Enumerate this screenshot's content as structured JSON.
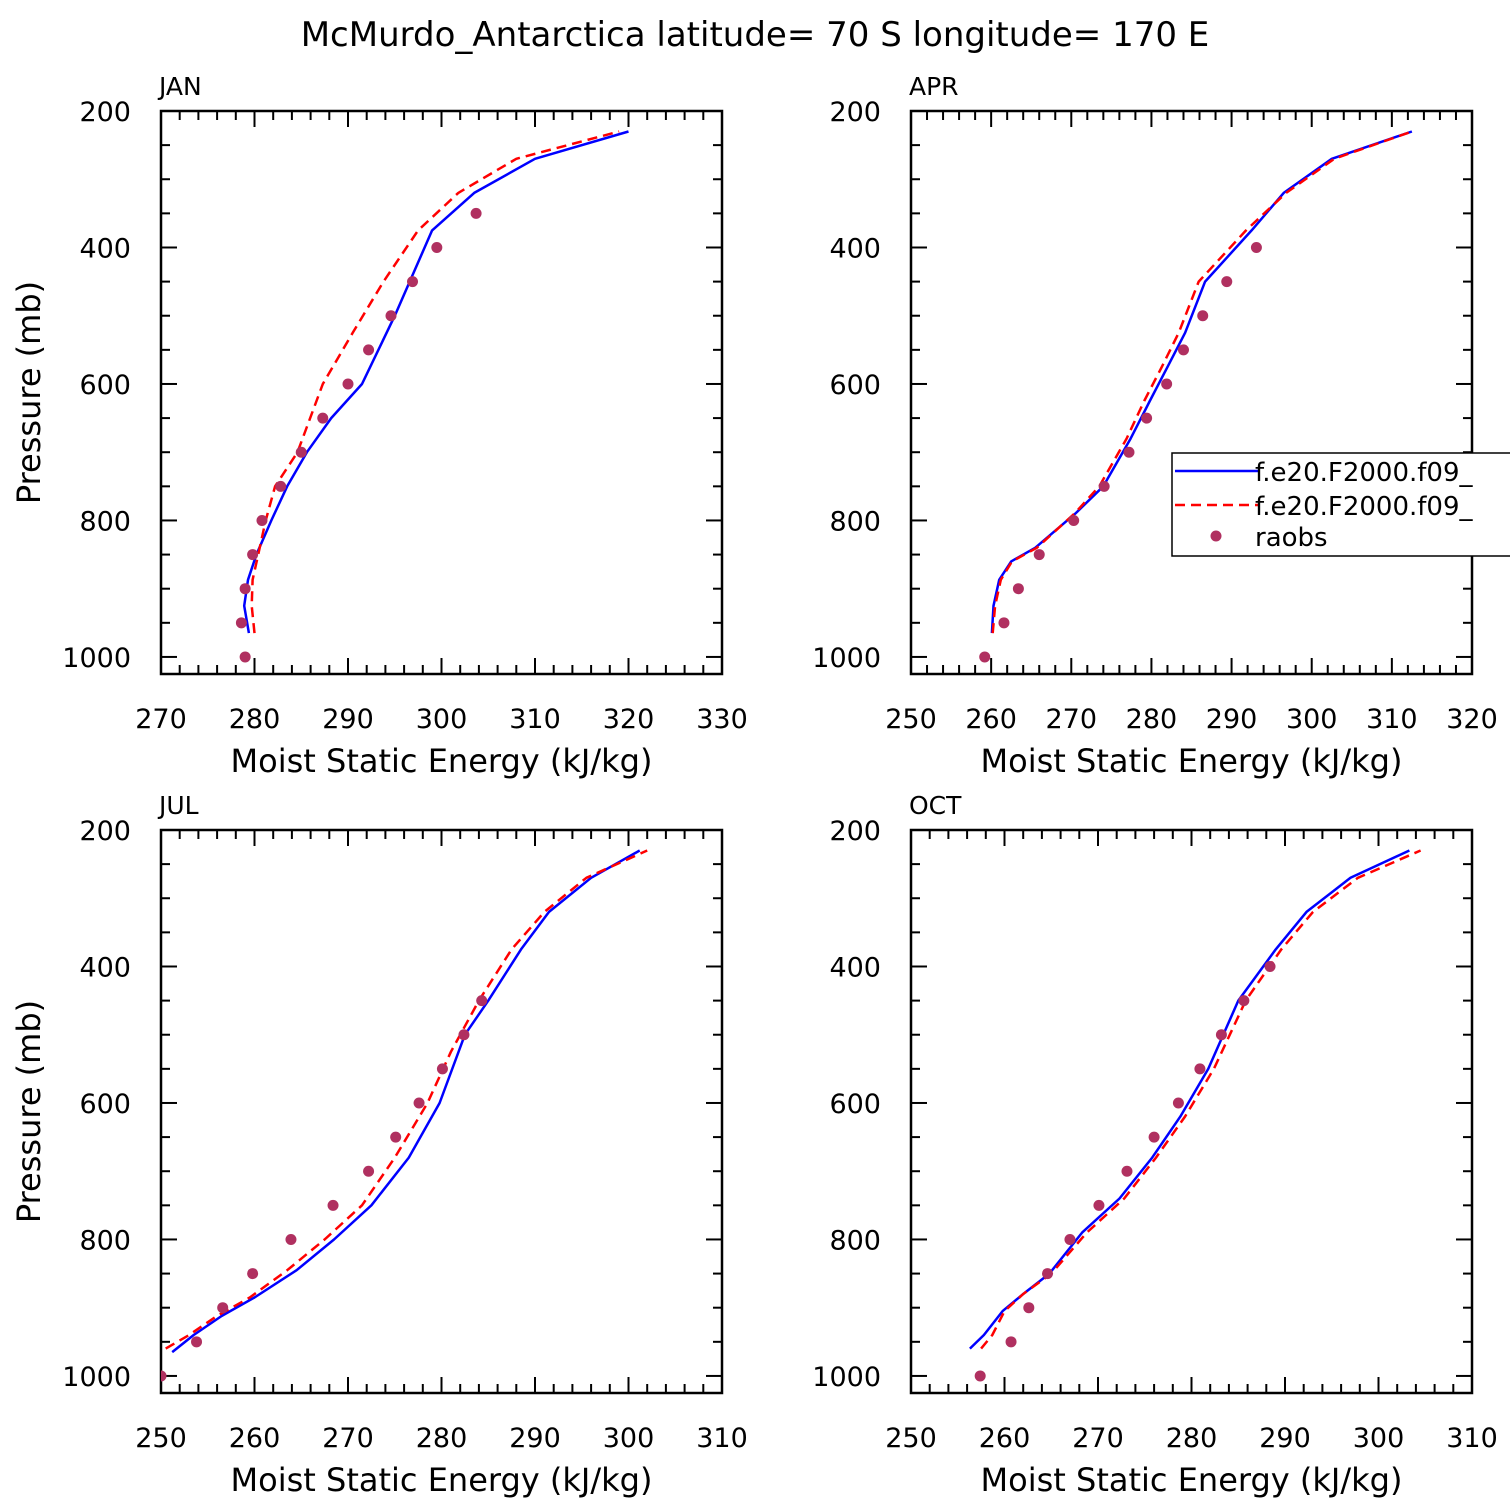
{
  "figure": {
    "title": "McMurdo_Antarctica  latitude= 70 S longitude= 170 E"
  },
  "legend": {
    "entries": [
      {
        "label": "f.e20.F2000.f09_",
        "color": "#0000ff",
        "style": "solid"
      },
      {
        "label": "f.e20.F2000.f09_",
        "color": "#ff0000",
        "style": "dashed"
      },
      {
        "label": "raobs",
        "color": "#b03060",
        "style": "marker"
      }
    ]
  },
  "chart_data": [
    {
      "type": "line",
      "panel": "JAN",
      "xlabel": "Moist Static Energy (kJ/kg)",
      "ylabel": "Pressure (mb)",
      "xlim": [
        270,
        330
      ],
      "ylim": [
        1025,
        200
      ],
      "xticks": [
        "270",
        "280",
        "290",
        "300",
        "310",
        "320",
        "330"
      ],
      "yticks": [
        "200",
        "400",
        "600",
        "800",
        "1000"
      ],
      "series": [
        {
          "color": "#0000ff",
          "style": "solid",
          "x": [
            279.4,
            278.9,
            279.3,
            280.2,
            281.8,
            283.5,
            285.6,
            288.2,
            291.5,
            295.0,
            299.0,
            303.5,
            310.0,
            320.0
          ],
          "y": [
            965,
            925,
            887,
            850,
            800,
            750,
            700,
            650,
            600,
            500,
            375,
            320,
            270,
            230
          ]
        },
        {
          "color": "#ff0000",
          "style": "dashed",
          "x": [
            280.0,
            279.7,
            279.8,
            280.4,
            281.2,
            282.2,
            284.6,
            287.3,
            290.5,
            293.8,
            297.5,
            301.8,
            308.0,
            319.0
          ],
          "y": [
            965,
            925,
            887,
            850,
            800,
            750,
            700,
            600,
            525,
            450,
            375,
            320,
            270,
            230
          ]
        },
        {
          "color": "#b03060",
          "style": "marker",
          "x": [
            279.0,
            278.6,
            279.0,
            279.8,
            280.8,
            282.8,
            285.0,
            287.3,
            290.0,
            292.2,
            294.6,
            296.9,
            299.5,
            303.7
          ],
          "y": [
            1000,
            950,
            900,
            850,
            800,
            750,
            700,
            650,
            600,
            550,
            500,
            450,
            400,
            350
          ]
        }
      ]
    },
    {
      "type": "line",
      "panel": "APR",
      "xlabel": "Moist Static Energy (kJ/kg)",
      "ylabel": "",
      "xlim": [
        250,
        320
      ],
      "ylim": [
        1025,
        200
      ],
      "xticks": [
        "250",
        "260",
        "270",
        "280",
        "290",
        "300",
        "310",
        "320"
      ],
      "yticks": [
        "200",
        "400",
        "600",
        "800",
        "1000"
      ],
      "series": [
        {
          "color": "#0000ff",
          "style": "solid",
          "x": [
            260.1,
            260.3,
            261.0,
            262.5,
            265.5,
            270.5,
            274.0,
            277.4,
            279.8,
            282.0,
            284.2,
            286.7,
            292.5,
            296.5,
            302.5,
            312.5
          ],
          "y": [
            965,
            925,
            887,
            860,
            840,
            790,
            750,
            680,
            625,
            575,
            525,
            450,
            375,
            320,
            270,
            230
          ]
        },
        {
          "color": "#ff0000",
          "style": "dashed",
          "x": [
            260.2,
            260.5,
            261.2,
            262.6,
            265.7,
            270.4,
            273.5,
            276.9,
            279.1,
            281.3,
            283.4,
            285.9,
            291.8,
            296.8,
            302.8,
            312.5
          ],
          "y": [
            965,
            925,
            887,
            860,
            840,
            790,
            750,
            680,
            625,
            575,
            525,
            450,
            375,
            320,
            270,
            230
          ]
        },
        {
          "color": "#b03060",
          "style": "marker",
          "x": [
            259.2,
            261.6,
            263.4,
            266.0,
            270.3,
            274.1,
            277.2,
            279.4,
            281.9,
            284.0,
            286.4,
            289.4,
            293.1
          ],
          "y": [
            1000,
            950,
            900,
            850,
            800,
            750,
            700,
            650,
            600,
            550,
            500,
            450,
            400
          ]
        }
      ]
    },
    {
      "type": "line",
      "panel": "JUL",
      "xlabel": "Moist Static Energy (kJ/kg)",
      "ylabel": "Pressure (mb)",
      "xlim": [
        250,
        310
      ],
      "ylim": [
        1025,
        200
      ],
      "xticks": [
        "250",
        "260",
        "270",
        "280",
        "290",
        "300",
        "310"
      ],
      "yticks": [
        "200",
        "400",
        "600",
        "800",
        "1000"
      ],
      "series": [
        {
          "color": "#0000ff",
          "style": "solid",
          "x": [
            251.2,
            253.5,
            256.5,
            260.0,
            264.5,
            268.5,
            272.5,
            276.5,
            279.8,
            282.5,
            285.0,
            288.5,
            291.5,
            296.0,
            301.2
          ],
          "y": [
            965,
            940,
            912,
            885,
            845,
            800,
            750,
            680,
            600,
            500,
            450,
            375,
            320,
            270,
            230
          ]
        },
        {
          "color": "#ff0000",
          "style": "dashed",
          "x": [
            250.5,
            253.0,
            256.0,
            259.5,
            263.5,
            267.5,
            271.5,
            275.0,
            278.5,
            281.0,
            284.0,
            287.5,
            291.0,
            295.5,
            302.0
          ],
          "y": [
            960,
            940,
            912,
            885,
            845,
            800,
            750,
            680,
            600,
            525,
            450,
            375,
            320,
            270,
            230
          ]
        },
        {
          "color": "#b03060",
          "style": "marker",
          "x": [
            250.0,
            253.8,
            256.6,
            259.8,
            263.9,
            268.4,
            272.2,
            275.1,
            277.6,
            280.1,
            282.4,
            284.3
          ],
          "y": [
            1000,
            950,
            900,
            850,
            800,
            750,
            700,
            650,
            600,
            550,
            500,
            450
          ]
        }
      ]
    },
    {
      "type": "line",
      "panel": "OCT",
      "xlabel": "Moist Static Energy (kJ/kg)",
      "ylabel": "",
      "xlim": [
        250,
        310
      ],
      "ylim": [
        1025,
        200
      ],
      "xticks": [
        "250",
        "260",
        "270",
        "280",
        "290",
        "300",
        "310"
      ],
      "yticks": [
        "200",
        "400",
        "600",
        "800",
        "1000"
      ],
      "series": [
        {
          "color": "#0000ff",
          "style": "solid",
          "x": [
            256.3,
            257.8,
            259.8,
            262.0,
            264.8,
            268.3,
            272.3,
            275.8,
            278.8,
            281.8,
            285.0,
            289.0,
            292.3,
            297.0,
            303.3
          ],
          "y": [
            960,
            940,
            905,
            880,
            850,
            790,
            740,
            680,
            620,
            550,
            450,
            375,
            320,
            270,
            230
          ]
        },
        {
          "color": "#ff0000",
          "style": "dashed",
          "x": [
            257.5,
            258.7,
            260.0,
            262.0,
            265.0,
            268.8,
            272.8,
            276.2,
            279.3,
            282.4,
            285.8,
            289.6,
            293.0,
            297.8,
            304.5
          ],
          "y": [
            960,
            940,
            905,
            880,
            850,
            790,
            740,
            680,
            620,
            550,
            450,
            375,
            320,
            270,
            230
          ]
        },
        {
          "color": "#b03060",
          "style": "marker",
          "x": [
            257.4,
            260.7,
            262.6,
            264.6,
            267.0,
            270.1,
            273.1,
            276.0,
            278.6,
            280.9,
            283.2,
            285.6,
            288.4
          ],
          "y": [
            1000,
            950,
            900,
            850,
            800,
            750,
            700,
            650,
            600,
            550,
            500,
            450,
            400
          ]
        }
      ]
    }
  ]
}
